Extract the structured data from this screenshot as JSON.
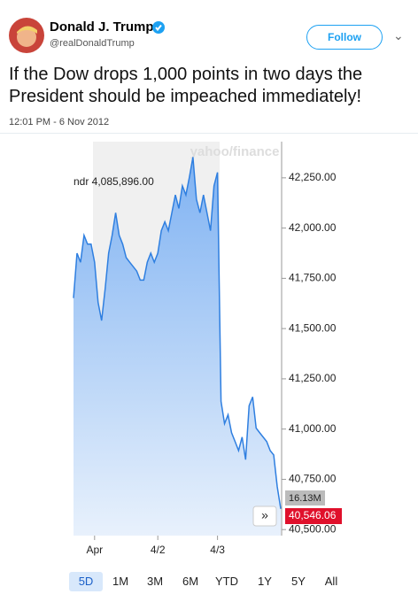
{
  "tweet": {
    "name": "Donald J. Trump",
    "handle": "@realDonaldTrump",
    "follow": "Follow",
    "text": "If the Dow drops 1,000 points in two days the President should be impeached immediately!",
    "timestamp": "12:01 PM - 6 Nov 2012"
  },
  "chart_data": {
    "type": "area",
    "watermark": "yahoo/finance",
    "crosshair_label": "ndr 4,085,896.00",
    "volume_label": "16.13M",
    "last_price_label": "40,546.06",
    "categories": [
      null,
      null,
      null,
      null,
      null,
      null,
      "Apr",
      null,
      null,
      null,
      null,
      null,
      null,
      null,
      null,
      null,
      null,
      null,
      null,
      null,
      null,
      null,
      null,
      null,
      "4/2",
      null,
      null,
      null,
      null,
      null,
      null,
      null,
      null,
      null,
      null,
      null,
      null,
      null,
      null,
      null,
      null,
      "4/3",
      null,
      null,
      null,
      null,
      null,
      null,
      null,
      null,
      null,
      null,
      null,
      null,
      null,
      null,
      null,
      null,
      null,
      null
    ],
    "series": [
      {
        "color": "#2f7fe0",
        "values": [
          41652,
          41875,
          41830,
          41964,
          41920,
          41920,
          41830,
          41630,
          41540,
          41696,
          41875,
          41964,
          42076,
          41964,
          41920,
          41853,
          41830,
          41808,
          41786,
          41741,
          41741,
          41830,
          41875,
          41830,
          41875,
          41987,
          42031,
          41987,
          42076,
          42165,
          42098,
          42210,
          42165,
          42254,
          42353,
          42143,
          42076,
          42165,
          42076,
          41987,
          42210,
          42277,
          41138,
          41027,
          41071,
          40982,
          40938,
          40893,
          40960,
          40848,
          41116,
          41160,
          41005,
          40982,
          40960,
          40938,
          40893,
          40871,
          40714,
          40603
        ]
      }
    ],
    "ylim": [
      40470,
      42430
    ],
    "yticks": [
      {
        "value": 40500,
        "label": "40,500.00"
      },
      {
        "value": 40750,
        "label": "40,750.00"
      },
      {
        "value": 41000,
        "label": "41,000.00"
      },
      {
        "value": 41250,
        "label": "41,250.00"
      },
      {
        "value": 41500,
        "label": "41,500.00"
      },
      {
        "value": 41750,
        "label": "41,750.00"
      },
      {
        "value": 42000,
        "label": "42,000.00"
      },
      {
        "value": 42250,
        "label": "42,250.00"
      }
    ],
    "ranges": [
      "5D",
      "1M",
      "3M",
      "6M",
      "YTD",
      "1Y",
      "5Y",
      "All"
    ]
  }
}
